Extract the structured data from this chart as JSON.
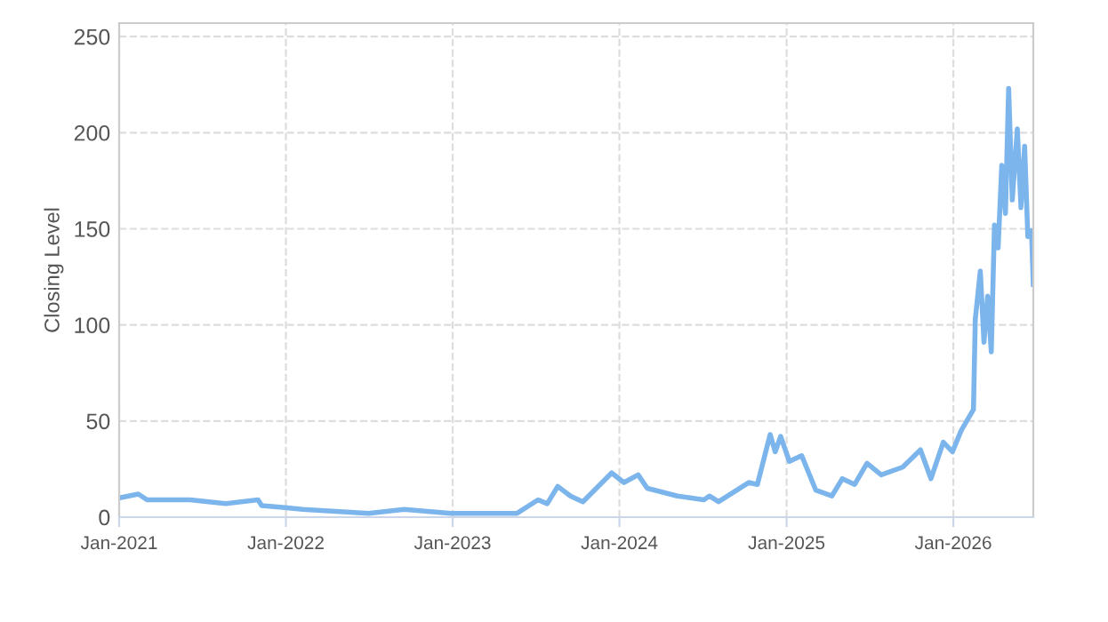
{
  "chart_data": {
    "type": "line",
    "ylabel": "Closing Level",
    "x": [
      "2021-01-01",
      "2021-02-12",
      "2021-03-03",
      "2021-06-05",
      "2021-08-22",
      "2021-11-01",
      "2021-11-09",
      "2021-12-30",
      "2022-02-07",
      "2022-07-01",
      "2022-09-17",
      "2022-12-28",
      "2023-05-22",
      "2023-07-07",
      "2023-07-27",
      "2023-08-19",
      "2023-09-16",
      "2023-10-13",
      "2023-12-15",
      "2024-01-11",
      "2024-02-11",
      "2024-03-02",
      "2024-05-07",
      "2024-07-04",
      "2024-07-16",
      "2024-08-05",
      "2024-10-10",
      "2024-10-29",
      "2024-11-26",
      "2024-12-07",
      "2024-12-19",
      "2025-01-07",
      "2025-02-03",
      "2025-03-06",
      "2025-04-10",
      "2025-05-03",
      "2025-05-30",
      "2025-06-26",
      "2025-07-27",
      "2025-09-12",
      "2025-10-21",
      "2025-11-13",
      "2025-12-10",
      "2025-12-30",
      "2026-01-18",
      "2026-02-14",
      "2026-02-18",
      "2026-03-01",
      "2026-03-09",
      "2026-03-17",
      "2026-03-25",
      "2026-04-01",
      "2026-04-09",
      "2026-04-17",
      "2026-04-25",
      "2026-05-02",
      "2026-05-10",
      "2026-05-21",
      "2026-05-29",
      "2026-06-06",
      "2026-06-13",
      "2026-06-21",
      "2026-06-25"
    ],
    "series": [
      {
        "color": "#7cb5ec",
        "values": [
          10,
          12,
          9,
          9,
          7,
          9,
          6,
          5,
          4,
          2,
          4,
          2,
          2,
          9,
          7,
          16,
          11,
          8,
          23,
          18,
          22,
          15,
          11,
          9,
          11,
          8,
          18,
          17,
          43,
          34,
          42,
          29,
          32,
          14,
          11,
          20,
          17,
          28,
          22,
          26,
          35,
          20,
          39,
          34,
          45,
          56,
          103,
          128,
          91,
          115,
          86,
          152,
          140,
          183,
          158,
          223,
          165,
          202,
          161,
          193,
          146,
          149,
          121
        ]
      }
    ],
    "xlim": [
      "2021-01-01",
      "2026-06-25"
    ],
    "xticks": [
      {
        "value": "2021-01-01",
        "label": "Jan-2021"
      },
      {
        "value": "2022-01-01",
        "label": "Jan-2022"
      },
      {
        "value": "2023-01-01",
        "label": "Jan-2023"
      },
      {
        "value": "2024-01-01",
        "label": "Jan-2024"
      },
      {
        "value": "2025-01-01",
        "label": "Jan-2025"
      },
      {
        "value": "2026-01-01",
        "label": "Jan-2026"
      }
    ],
    "ylim": [
      0,
      257
    ],
    "yticks": [
      0,
      50,
      100,
      150,
      200,
      250
    ],
    "grid": true,
    "marker": "none",
    "line_style": "solid"
  }
}
